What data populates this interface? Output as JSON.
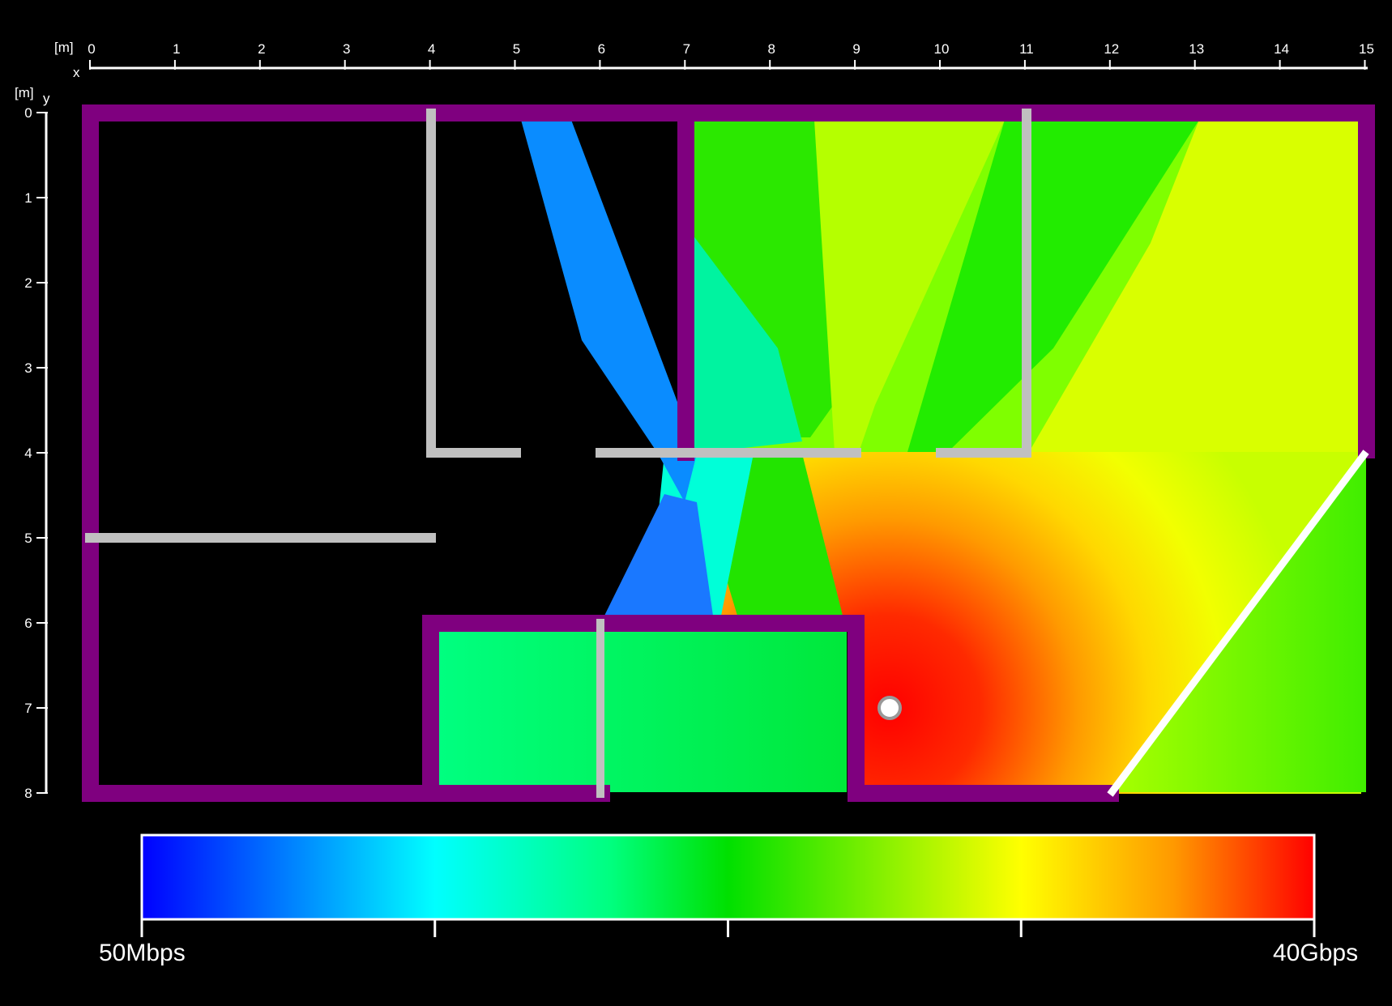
{
  "axes": {
    "x_unit": "[m]",
    "x_name": "x",
    "y_unit": "[m]",
    "y_name": "y",
    "x_ticks": [
      "0",
      "1",
      "2",
      "3",
      "4",
      "5",
      "6",
      "7",
      "8",
      "9",
      "10",
      "11",
      "12",
      "13",
      "14",
      "15"
    ],
    "y_ticks": [
      "0",
      "1",
      "2",
      "3",
      "4",
      "5",
      "6",
      "7",
      "8"
    ]
  },
  "colorbar": {
    "min_label": "50Mbps",
    "max_label": "40Gbps",
    "colors": [
      "#0000ff",
      "#00ffff",
      "#00ff7f",
      "#00e000",
      "#ffff00",
      "#ff9900",
      "#ff0000"
    ]
  },
  "floorplan": {
    "wall_color": "#7f007f",
    "partition_color": "#c0c0c0",
    "access_point": {
      "x_m": 9.4,
      "y_m": 7.0
    }
  }
}
